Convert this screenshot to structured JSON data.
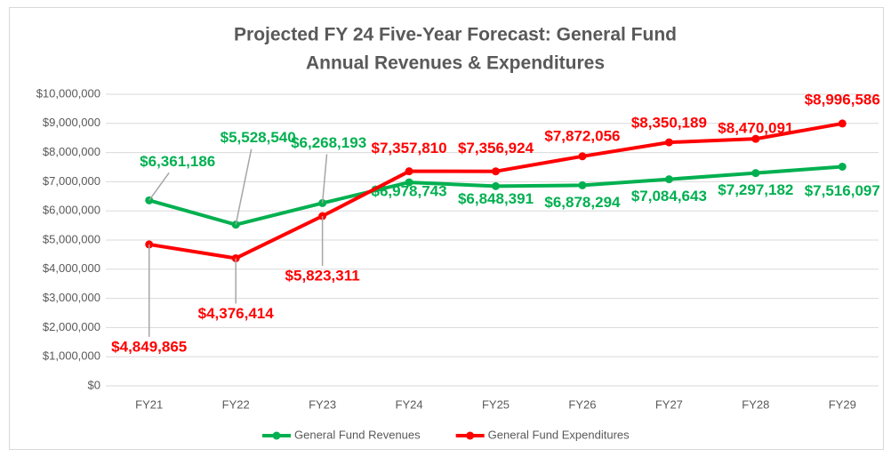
{
  "chart_data": {
    "type": "line",
    "title": "Projected  FY 24 Five-Year Forecast: General Fund",
    "subtitle": "Annual Revenues & Expenditures",
    "categories": [
      "FY21",
      "FY22",
      "FY23",
      "FY24",
      "FY25",
      "FY26",
      "FY27",
      "FY28",
      "FY29"
    ],
    "series": [
      {
        "name": "General Fund Revenues",
        "color": "#00b050",
        "values": [
          6361186,
          5528540,
          6268193,
          6978743,
          6848391,
          6878294,
          7084643,
          7297182,
          7516097
        ],
        "value_labels": [
          "$6,361,186",
          "$5,528,540",
          "$6,268,193",
          "$6,978,743",
          "$6,848,391",
          "$6,878,294",
          "$7,084,643",
          "$7,297,182",
          "$7,516,097"
        ]
      },
      {
        "name": "General Fund Expenditures",
        "color": "#ff0000",
        "values": [
          4849865,
          4376414,
          5823311,
          7357810,
          7356924,
          7872056,
          8350189,
          8470091,
          8996586
        ],
        "value_labels": [
          "$4,849,865",
          "$4,376,414",
          "$5,823,311",
          "$7,357,810",
          "$7,356,924",
          "$7,872,056",
          "$8,350,189",
          "$8,470,091",
          "$8,996,586"
        ]
      }
    ],
    "ylim": [
      0,
      10000000
    ],
    "yticks": [
      {
        "value": 0,
        "label": "$0"
      },
      {
        "value": 1000000,
        "label": "$1,000,000"
      },
      {
        "value": 2000000,
        "label": "$2,000,000"
      },
      {
        "value": 3000000,
        "label": "$3,000,000"
      },
      {
        "value": 4000000,
        "label": "$4,000,000"
      },
      {
        "value": 5000000,
        "label": "$5,000,000"
      },
      {
        "value": 6000000,
        "label": "$6,000,000"
      },
      {
        "value": 7000000,
        "label": "$7,000,000"
      },
      {
        "value": 8000000,
        "label": "$8,000,000"
      },
      {
        "value": 9000000,
        "label": "$9,000,000"
      },
      {
        "value": 10000000,
        "label": "$10,000,000"
      }
    ],
    "grid": true,
    "legend": "bottom"
  }
}
